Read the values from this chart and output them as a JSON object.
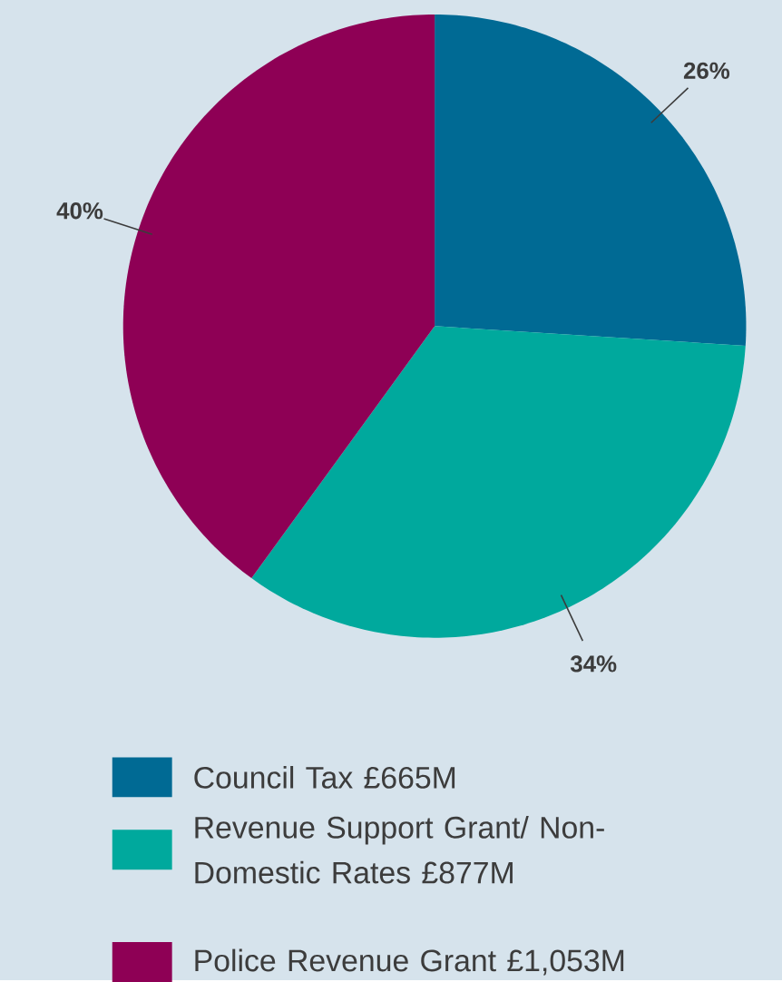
{
  "chart_data": {
    "type": "pie",
    "categories": [
      "Council Tax £665M",
      "Revenue Support Grant/ Non-Domestic Rates £877M",
      "Police Revenue Grant £1,053M"
    ],
    "values": [
      26,
      34,
      40
    ],
    "value_labels": [
      "26%",
      "34%",
      "40%"
    ],
    "colors": [
      "#006a94",
      "#00a99d",
      "#8e0055"
    ],
    "legend": "bottom"
  }
}
